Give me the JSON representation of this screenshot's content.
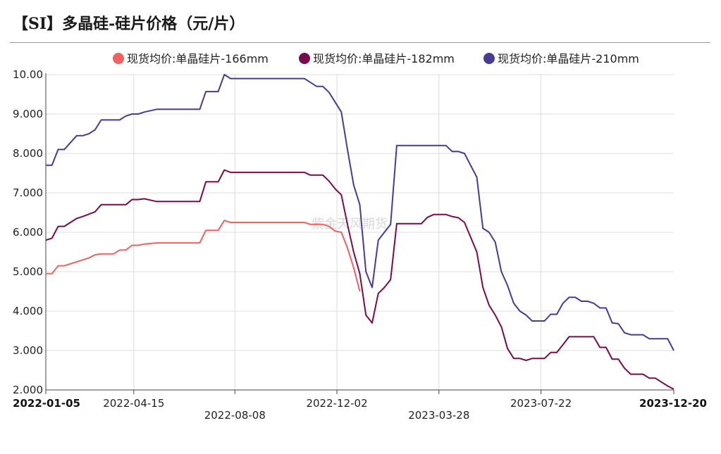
{
  "header": {
    "title": "【SI】多晶硅-硅片价格（元/片）"
  },
  "watermark": "紫金天风期货",
  "chart_data": {
    "type": "line",
    "title": "【SI】多晶硅-硅片价格（元/片）",
    "ylim": [
      2.0,
      10.0
    ],
    "yticks": [
      "2.000",
      "3.000",
      "4.000",
      "5.000",
      "6.000",
      "7.000",
      "8.000",
      "9.000",
      "10.00"
    ],
    "xlim": [
      "2022-01-05",
      "2023-12-20"
    ],
    "xticks": [
      {
        "label": "2022-01-05",
        "date": "2022-01-05",
        "bold": true,
        "row": 0
      },
      {
        "label": "2022-04-15",
        "date": "2022-04-15",
        "bold": false,
        "row": 0
      },
      {
        "label": "2022-08-08",
        "date": "2022-08-08",
        "bold": false,
        "row": 1
      },
      {
        "label": "2022-12-02",
        "date": "2022-12-02",
        "bold": false,
        "row": 0
      },
      {
        "label": "2023-03-28",
        "date": "2023-03-28",
        "bold": false,
        "row": 1
      },
      {
        "label": "2023-07-22",
        "date": "2023-07-22",
        "bold": false,
        "row": 0
      },
      {
        "label": "2023-12-20",
        "date": "2023-12-20",
        "bold": true,
        "row": 0
      }
    ],
    "grid": true,
    "legend_position": "top",
    "series": [
      {
        "name": "现货均价:单晶硅片-166mm",
        "color": "#f26060",
        "points": [
          [
            "2022-01-05",
            4.95
          ],
          [
            "2022-01-12",
            4.95
          ],
          [
            "2022-01-19",
            5.15
          ],
          [
            "2022-01-26",
            5.15
          ],
          [
            "2022-02-09",
            5.25
          ],
          [
            "2022-02-16",
            5.3
          ],
          [
            "2022-02-23",
            5.35
          ],
          [
            "2022-03-02",
            5.43
          ],
          [
            "2022-03-09",
            5.45
          ],
          [
            "2022-03-23",
            5.45
          ],
          [
            "2022-03-30",
            5.55
          ],
          [
            "2022-04-06",
            5.55
          ],
          [
            "2022-04-13",
            5.67
          ],
          [
            "2022-04-20",
            5.67
          ],
          [
            "2022-04-27",
            5.7
          ],
          [
            "2022-05-11",
            5.73
          ],
          [
            "2022-06-29",
            5.73
          ],
          [
            "2022-07-06",
            6.05
          ],
          [
            "2022-07-20",
            6.05
          ],
          [
            "2022-07-27",
            6.3
          ],
          [
            "2022-08-03",
            6.25
          ],
          [
            "2022-10-26",
            6.25
          ],
          [
            "2022-11-02",
            6.2
          ],
          [
            "2022-11-16",
            6.2
          ],
          [
            "2022-11-23",
            6.15
          ],
          [
            "2022-11-30",
            6.03
          ],
          [
            "2022-12-07",
            6.0
          ],
          [
            "2022-12-14",
            5.6
          ],
          [
            "2022-12-21",
            5.1
          ],
          [
            "2022-12-28",
            4.5
          ]
        ]
      },
      {
        "name": "现货均价:单晶硅片-182mm",
        "color": "#7a0a4e",
        "points": [
          [
            "2022-01-05",
            5.8
          ],
          [
            "2022-01-12",
            5.85
          ],
          [
            "2022-01-19",
            6.15
          ],
          [
            "2022-01-26",
            6.15
          ],
          [
            "2022-02-09",
            6.35
          ],
          [
            "2022-02-16",
            6.4
          ],
          [
            "2022-03-02",
            6.52
          ],
          [
            "2022-03-09",
            6.7
          ],
          [
            "2022-04-06",
            6.7
          ],
          [
            "2022-04-13",
            6.83
          ],
          [
            "2022-04-20",
            6.83
          ],
          [
            "2022-04-27",
            6.85
          ],
          [
            "2022-05-11",
            6.78
          ],
          [
            "2022-06-29",
            6.78
          ],
          [
            "2022-07-06",
            7.28
          ],
          [
            "2022-07-20",
            7.28
          ],
          [
            "2022-07-27",
            7.58
          ],
          [
            "2022-08-03",
            7.52
          ],
          [
            "2022-10-26",
            7.52
          ],
          [
            "2022-11-02",
            7.45
          ],
          [
            "2022-11-16",
            7.45
          ],
          [
            "2022-11-23",
            7.3
          ],
          [
            "2022-11-30",
            7.1
          ],
          [
            "2022-12-07",
            6.95
          ],
          [
            "2022-12-14",
            6.2
          ],
          [
            "2022-12-21",
            5.5
          ],
          [
            "2022-12-28",
            4.95
          ],
          [
            "2023-01-04",
            3.9
          ],
          [
            "2023-01-11",
            3.7
          ],
          [
            "2023-01-18",
            4.45
          ],
          [
            "2023-01-25",
            4.6
          ],
          [
            "2023-02-01",
            4.8
          ],
          [
            "2023-02-08",
            6.22
          ],
          [
            "2023-03-08",
            6.22
          ],
          [
            "2023-03-15",
            6.38
          ],
          [
            "2023-03-22",
            6.45
          ],
          [
            "2023-04-05",
            6.45
          ],
          [
            "2023-04-12",
            6.4
          ],
          [
            "2023-04-19",
            6.37
          ],
          [
            "2023-04-26",
            6.25
          ],
          [
            "2023-05-03",
            5.88
          ],
          [
            "2023-05-10",
            5.5
          ],
          [
            "2023-05-17",
            4.6
          ],
          [
            "2023-05-24",
            4.15
          ],
          [
            "2023-05-31",
            3.9
          ],
          [
            "2023-06-07",
            3.6
          ],
          [
            "2023-06-14",
            3.05
          ],
          [
            "2023-06-21",
            2.8
          ],
          [
            "2023-06-28",
            2.8
          ],
          [
            "2023-07-05",
            2.75
          ],
          [
            "2023-07-12",
            2.8
          ],
          [
            "2023-07-26",
            2.8
          ],
          [
            "2023-08-02",
            2.95
          ],
          [
            "2023-08-09",
            2.95
          ],
          [
            "2023-08-16",
            3.15
          ],
          [
            "2023-08-23",
            3.35
          ],
          [
            "2023-09-20",
            3.35
          ],
          [
            "2023-09-27",
            3.08
          ],
          [
            "2023-10-04",
            3.08
          ],
          [
            "2023-10-11",
            2.78
          ],
          [
            "2023-10-18",
            2.78
          ],
          [
            "2023-10-25",
            2.55
          ],
          [
            "2023-11-01",
            2.4
          ],
          [
            "2023-11-15",
            2.4
          ],
          [
            "2023-11-22",
            2.3
          ],
          [
            "2023-11-29",
            2.3
          ],
          [
            "2023-12-06",
            2.2
          ],
          [
            "2023-12-13",
            2.1
          ],
          [
            "2023-12-20",
            2.02
          ]
        ]
      },
      {
        "name": "现货均价:单晶硅片-210mm",
        "color": "#4a3a96",
        "points": [
          [
            "2022-01-05",
            7.7
          ],
          [
            "2022-01-12",
            7.7
          ],
          [
            "2022-01-19",
            8.1
          ],
          [
            "2022-01-26",
            8.1
          ],
          [
            "2022-02-09",
            8.45
          ],
          [
            "2022-02-16",
            8.45
          ],
          [
            "2022-02-23",
            8.5
          ],
          [
            "2022-03-02",
            8.6
          ],
          [
            "2022-03-09",
            8.85
          ],
          [
            "2022-03-30",
            8.85
          ],
          [
            "2022-04-06",
            8.95
          ],
          [
            "2022-04-13",
            9.0
          ],
          [
            "2022-04-20",
            9.0
          ],
          [
            "2022-04-27",
            9.05
          ],
          [
            "2022-05-11",
            9.12
          ],
          [
            "2022-06-29",
            9.12
          ],
          [
            "2022-07-06",
            9.57
          ],
          [
            "2022-07-20",
            9.57
          ],
          [
            "2022-07-27",
            10.0
          ],
          [
            "2022-08-03",
            9.9
          ],
          [
            "2022-10-26",
            9.9
          ],
          [
            "2022-11-02",
            9.8
          ],
          [
            "2022-11-09",
            9.7
          ],
          [
            "2022-11-16",
            9.7
          ],
          [
            "2022-11-23",
            9.55
          ],
          [
            "2022-11-30",
            9.3
          ],
          [
            "2022-12-07",
            9.05
          ],
          [
            "2022-12-14",
            8.1
          ],
          [
            "2022-12-21",
            7.2
          ],
          [
            "2022-12-28",
            6.7
          ],
          [
            "2023-01-04",
            5.0
          ],
          [
            "2023-01-11",
            4.6
          ],
          [
            "2023-01-18",
            5.8
          ],
          [
            "2023-01-25",
            6.0
          ],
          [
            "2023-02-01",
            6.2
          ],
          [
            "2023-02-08",
            8.2
          ],
          [
            "2023-04-05",
            8.2
          ],
          [
            "2023-04-12",
            8.05
          ],
          [
            "2023-04-19",
            8.05
          ],
          [
            "2023-04-26",
            8.0
          ],
          [
            "2023-05-03",
            7.7
          ],
          [
            "2023-05-10",
            7.4
          ],
          [
            "2023-05-17",
            6.1
          ],
          [
            "2023-05-24",
            6.0
          ],
          [
            "2023-05-31",
            5.75
          ],
          [
            "2023-06-07",
            5.0
          ],
          [
            "2023-06-14",
            4.65
          ],
          [
            "2023-06-21",
            4.2
          ],
          [
            "2023-06-28",
            4.0
          ],
          [
            "2023-07-05",
            3.9
          ],
          [
            "2023-07-12",
            3.75
          ],
          [
            "2023-07-26",
            3.75
          ],
          [
            "2023-08-02",
            3.92
          ],
          [
            "2023-08-09",
            3.92
          ],
          [
            "2023-08-16",
            4.2
          ],
          [
            "2023-08-23",
            4.35
          ],
          [
            "2023-08-30",
            4.35
          ],
          [
            "2023-09-06",
            4.25
          ],
          [
            "2023-09-13",
            4.25
          ],
          [
            "2023-09-20",
            4.2
          ],
          [
            "2023-09-27",
            4.08
          ],
          [
            "2023-10-04",
            4.08
          ],
          [
            "2023-10-11",
            3.7
          ],
          [
            "2023-10-18",
            3.68
          ],
          [
            "2023-10-25",
            3.45
          ],
          [
            "2023-11-01",
            3.4
          ],
          [
            "2023-11-15",
            3.4
          ],
          [
            "2023-11-22",
            3.3
          ],
          [
            "2023-12-13",
            3.3
          ],
          [
            "2023-12-20",
            3.0
          ]
        ]
      }
    ]
  }
}
